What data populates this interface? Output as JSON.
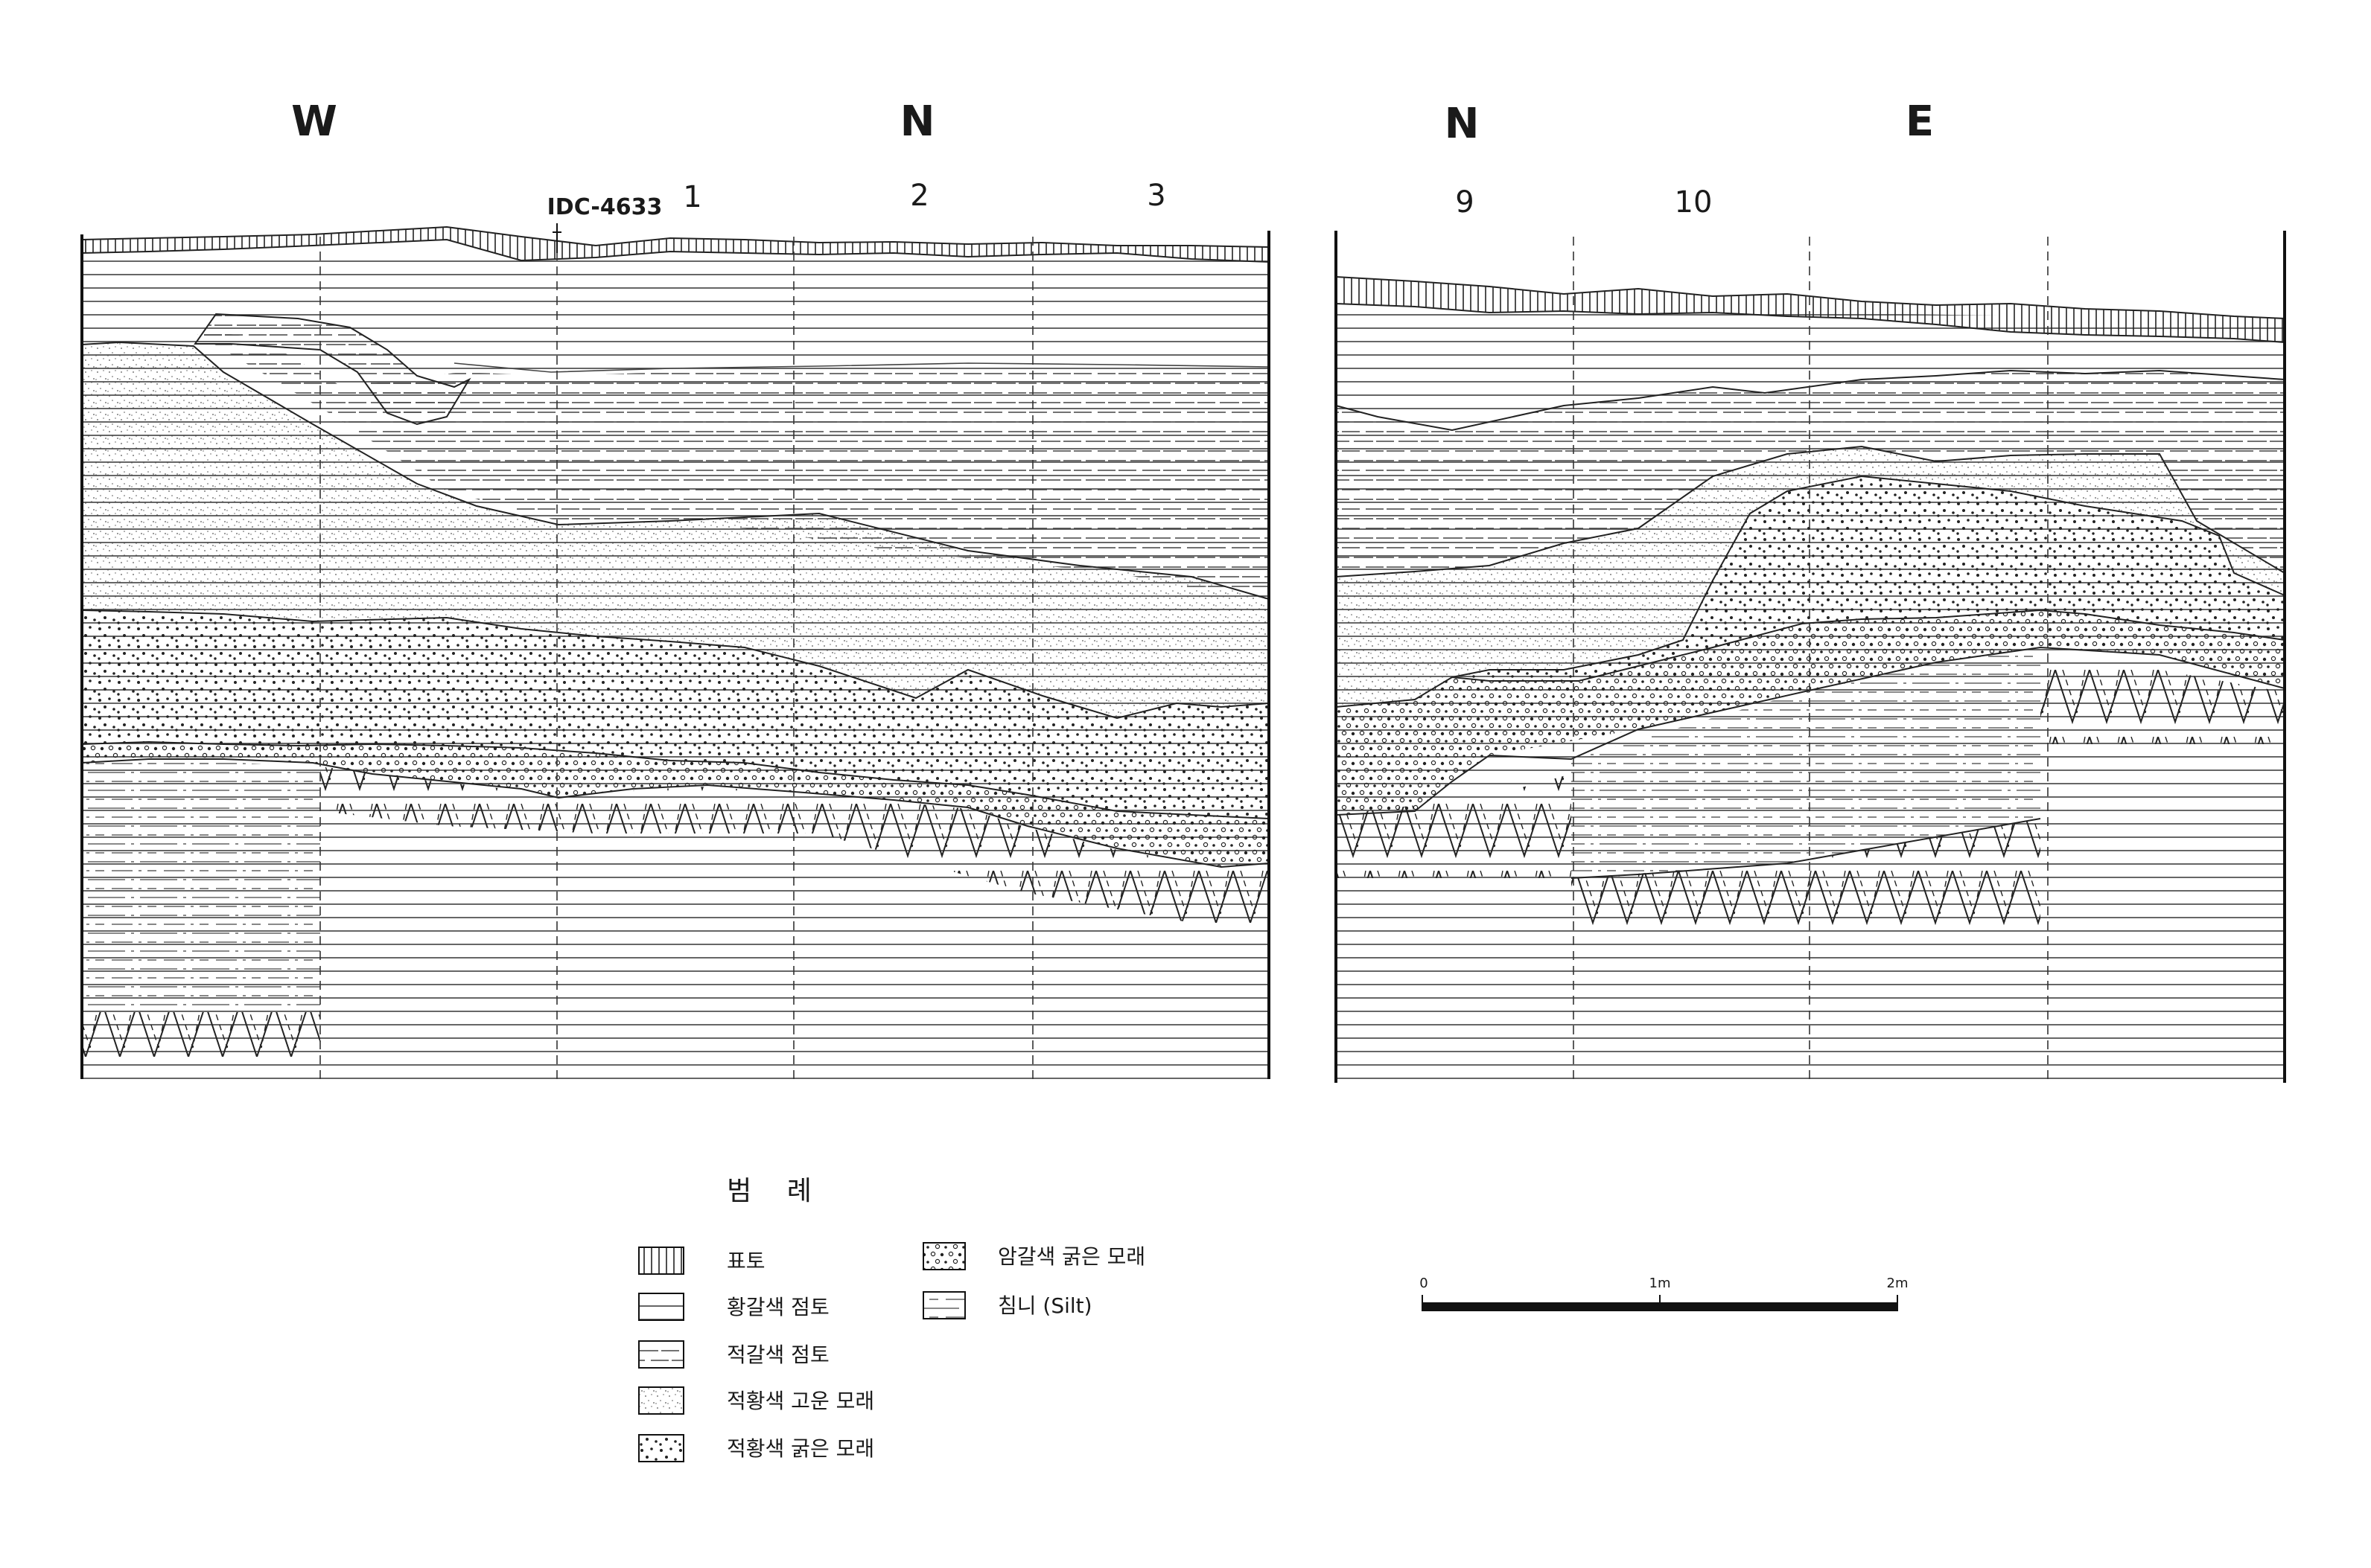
{
  "section_left": {
    "directions": [
      "W",
      "N"
    ],
    "grid_labels": [
      "1",
      "2",
      "3"
    ],
    "sample_label": "IDC-4633"
  },
  "section_right": {
    "directions": [
      "N",
      "E"
    ],
    "grid_labels": [
      "9",
      "10"
    ]
  },
  "legend": {
    "title": "범 례",
    "items": [
      {
        "pattern": "vertical-hatch",
        "label": "표토"
      },
      {
        "pattern": "horizontal-lines",
        "label": "황갈색 점토"
      },
      {
        "pattern": "dashed-lines",
        "label": "적갈색 점토"
      },
      {
        "pattern": "fine-dots",
        "label": "적황색 고운 모래"
      },
      {
        "pattern": "dense-dots",
        "label": "적황색 굵은 모래"
      },
      {
        "pattern": "coarse-dots",
        "label": "암갈색 굵은 모래"
      },
      {
        "pattern": "dash-lines-box",
        "label": "침니 (Silt)"
      }
    ]
  },
  "scale_bar": {
    "ticks": [
      "0",
      "1m",
      "2m"
    ]
  }
}
